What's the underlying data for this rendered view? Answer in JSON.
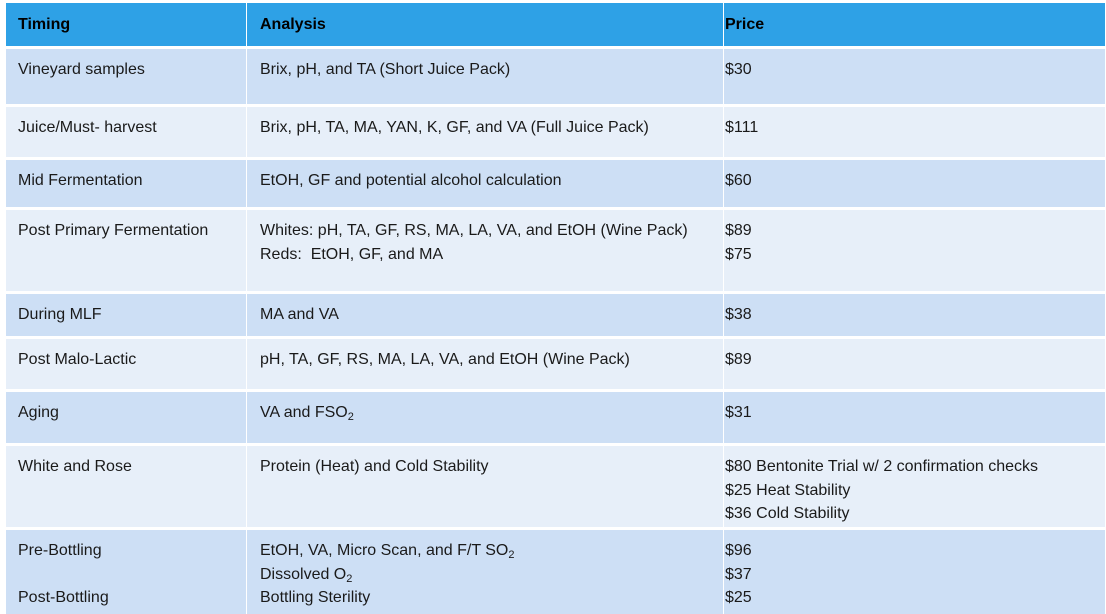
{
  "headers": {
    "timing": "Timing",
    "analysis": "Analysis",
    "price": "Price"
  },
  "colors": {
    "header": "#2ea1e6",
    "row_dark": "#cddff5",
    "row_light": "#e7eff9"
  },
  "rows": [
    {
      "timing": [
        "Vineyard samples"
      ],
      "analysis": [
        "Brix, pH, and TA (Short Juice Pack)"
      ],
      "price": [
        "$30"
      ]
    },
    {
      "timing": [
        "Juice/Must- harvest"
      ],
      "analysis": [
        "Brix, pH, TA, MA, YAN, K, GF, and VA (Full Juice Pack)"
      ],
      "price": [
        "$111"
      ]
    },
    {
      "timing": [
        "Mid Fermentation"
      ],
      "analysis": [
        "EtOH, GF and potential alcohol calculation"
      ],
      "price": [
        "$60"
      ]
    },
    {
      "timing": [
        "Post Primary Fermentation"
      ],
      "analysis": [
        "Whites: pH, TA, GF, RS, MA, LA, VA, and EtOH (Wine Pack)",
        "Reds:  EtOH, GF, and MA"
      ],
      "price": [
        "$89",
        "$75"
      ]
    },
    {
      "timing": [
        "During MLF"
      ],
      "analysis": [
        "MA and VA"
      ],
      "price": [
        "$38"
      ]
    },
    {
      "timing": [
        "Post Malo-Lactic"
      ],
      "analysis": [
        "pH, TA, GF, RS, MA, LA, VA, and EtOH (Wine Pack)"
      ],
      "price": [
        "$89"
      ]
    },
    {
      "timing": [
        "Aging"
      ],
      "analysis": [
        "VA and FSO",
        "2"
      ],
      "price": [
        "$31"
      ]
    },
    {
      "timing": [
        "White and Rose"
      ],
      "analysis": [
        "Protein (Heat) and Cold Stability"
      ],
      "price": [
        "$80 Bentonite Trial w/ 2 confirmation checks",
        "$25 Heat Stability",
        "$36 Cold Stability"
      ]
    },
    {
      "timing": [
        "Pre-Bottling",
        "Post-Bottling"
      ],
      "analysis": [
        "EtOH, VA, Micro Scan, and F/T SO",
        "2",
        "Dissolved O",
        "2",
        "Bottling Sterility"
      ],
      "price": [
        "$96",
        "$37",
        "$25"
      ]
    }
  ]
}
